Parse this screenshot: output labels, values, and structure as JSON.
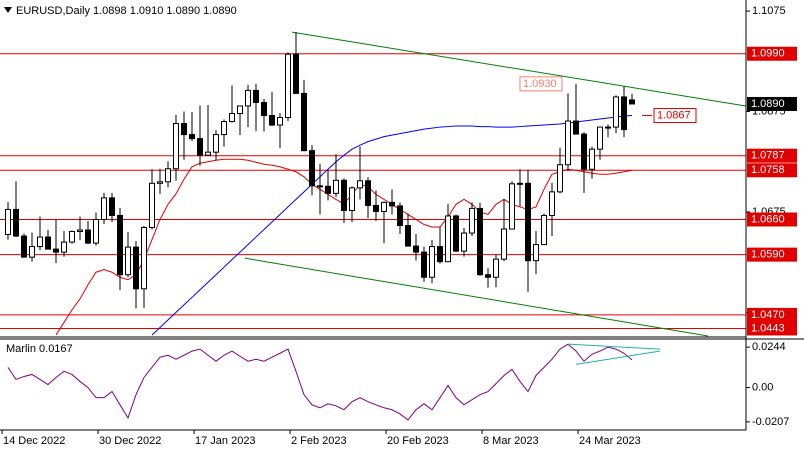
{
  "chart_data": [
    {
      "type": "candlestick",
      "title": "EURUSD,Daily 1.0898 1.0910 1.0890 1.0890",
      "categories": [
        "14 Dec 2022",
        null,
        null,
        null,
        null,
        null,
        null,
        null,
        null,
        null,
        null,
        null,
        "30 Dec 2022",
        null,
        null,
        null,
        null,
        null,
        null,
        null,
        null,
        null,
        null,
        null,
        "17 Jan 2023",
        null,
        null,
        null,
        null,
        null,
        null,
        null,
        null,
        null,
        null,
        null,
        "2 Feb 2023",
        null,
        null,
        null,
        null,
        null,
        null,
        null,
        null,
        null,
        null,
        null,
        "20 Feb 2023",
        null,
        null,
        null,
        null,
        null,
        null,
        null,
        null,
        null,
        null,
        null,
        "8 Mar 2023",
        null,
        null,
        null,
        null,
        null,
        null,
        null,
        null,
        null,
        null,
        null,
        "24 Mar 2023",
        null,
        null,
        null,
        null,
        null,
        null
      ],
      "ohlc": [
        [
          1.063,
          1.0695,
          1.062,
          1.068
        ],
        [
          1.068,
          1.0736,
          1.0625,
          1.0627
        ],
        [
          1.0627,
          1.0632,
          1.0585,
          1.0585
        ],
        [
          1.0585,
          1.0634,
          1.0576,
          1.0606
        ],
        [
          1.0606,
          1.0666,
          1.0599,
          1.0625
        ],
        [
          1.0625,
          1.0639,
          1.0601,
          1.0601
        ],
        [
          1.0601,
          1.0659,
          1.0573,
          1.0595
        ],
        [
          1.0595,
          1.0637,
          1.0586,
          1.0615
        ],
        [
          1.0615,
          1.0638,
          1.0612,
          1.0636
        ],
        [
          1.0636,
          1.0666,
          1.0619,
          1.0639
        ],
        [
          1.0639,
          1.0657,
          1.0611,
          1.0613
        ],
        [
          1.0613,
          1.0674,
          1.0608,
          1.066
        ],
        [
          1.066,
          1.0713,
          1.0651,
          1.0703
        ],
        [
          1.0703,
          1.0713,
          1.0655,
          1.0668
        ],
        [
          1.0668,
          1.0683,
          1.0519,
          1.055
        ],
        [
          1.055,
          1.0635,
          1.0545,
          1.0605
        ],
        [
          1.0605,
          1.0617,
          1.0483,
          1.0522
        ],
        [
          1.0522,
          1.0647,
          1.0484,
          1.0644
        ],
        [
          1.0644,
          1.076,
          1.064,
          1.0732
        ],
        [
          1.0732,
          1.0761,
          1.0711,
          1.0735
        ],
        [
          1.0735,
          1.0776,
          1.0724,
          1.0761
        ],
        [
          1.0761,
          1.0868,
          1.0737,
          1.0851
        ],
        [
          1.0851,
          1.0875,
          1.0779,
          1.0829
        ],
        [
          1.0829,
          1.0874,
          1.0816,
          1.0821
        ],
        [
          1.0821,
          1.0887,
          1.0767,
          1.0788
        ],
        [
          1.0788,
          1.0888,
          1.0788,
          1.0794
        ],
        [
          1.0794,
          1.0838,
          1.0778,
          1.0829
        ],
        [
          1.0829,
          1.0859,
          1.0805,
          1.0855
        ],
        [
          1.0855,
          1.0927,
          1.0853,
          1.0871
        ],
        [
          1.0871,
          1.0887,
          1.0828,
          1.0886
        ],
        [
          1.0886,
          1.0928,
          1.0844,
          1.0917
        ],
        [
          1.0917,
          1.093,
          1.0836,
          1.0893
        ],
        [
          1.0893,
          1.09,
          1.0835,
          1.0867
        ],
        [
          1.0867,
          1.0914,
          1.0846,
          1.0848
        ],
        [
          1.0848,
          1.0872,
          1.0802,
          1.0863
        ],
        [
          1.0863,
          1.0993,
          1.0856,
          1.0989
        ],
        [
          1.0989,
          1.1033,
          1.0912,
          1.0911
        ],
        [
          1.0911,
          1.0938,
          1.0796,
          1.0797
        ],
        [
          1.0797,
          1.0808,
          1.0708,
          1.0727
        ],
        [
          1.0727,
          1.0771,
          1.067,
          1.0726
        ],
        [
          1.0726,
          1.0759,
          1.0698,
          1.0712
        ],
        [
          1.0712,
          1.079,
          1.0705,
          1.0738
        ],
        [
          1.0738,
          1.0742,
          1.0653,
          1.0678
        ],
        [
          1.0678,
          1.0726,
          1.0655,
          1.0723
        ],
        [
          1.0723,
          1.0805,
          1.07,
          1.0737
        ],
        [
          1.0737,
          1.0744,
          1.0663,
          1.0688
        ],
        [
          1.0688,
          1.0718,
          1.0657,
          1.0676
        ],
        [
          1.0676,
          1.0696,
          1.0613,
          1.0694
        ],
        [
          1.0694,
          1.072,
          1.067,
          1.0687
        ],
        [
          1.0687,
          1.0694,
          1.0631,
          1.0648
        ],
        [
          1.0648,
          1.0672,
          1.0612,
          1.0607
        ],
        [
          1.0607,
          1.0631,
          1.0578,
          1.0595
        ],
        [
          1.0595,
          1.0606,
          1.0536,
          1.0545
        ],
        [
          1.0545,
          1.0619,
          1.0533,
          1.0606
        ],
        [
          1.0606,
          1.0645,
          1.0572,
          1.0576
        ],
        [
          1.0576,
          1.0691,
          1.0575,
          1.0667
        ],
        [
          1.0667,
          1.067,
          1.0595,
          1.0597
        ],
        [
          1.0597,
          1.0643,
          1.0586,
          1.0633
        ],
        [
          1.0633,
          1.0694,
          1.0627,
          1.0682
        ],
        [
          1.0682,
          1.0693,
          1.0548,
          1.055
        ],
        [
          1.055,
          1.0563,
          1.0524,
          1.0545
        ],
        [
          1.0545,
          1.059,
          1.0525,
          1.0581
        ],
        [
          1.0581,
          1.0701,
          1.0577,
          1.0641
        ],
        [
          1.0641,
          1.0736,
          1.0643,
          1.0731
        ],
        [
          1.0731,
          1.076,
          1.0686,
          1.0732
        ],
        [
          1.0732,
          1.0759,
          1.0516,
          1.0578
        ],
        [
          1.0578,
          1.0637,
          1.0551,
          1.061
        ],
        [
          1.061,
          1.0672,
          1.0612,
          1.0668
        ],
        [
          1.0668,
          1.0733,
          1.0627,
          1.0715
        ],
        [
          1.0715,
          1.0803,
          1.0712,
          1.0769
        ],
        [
          1.0769,
          1.0911,
          1.0757,
          1.0856
        ],
        [
          1.0856,
          1.093,
          1.0831,
          1.083
        ],
        [
          1.083,
          1.0834,
          1.0713,
          1.076
        ],
        [
          1.076,
          1.0805,
          1.0741,
          1.08
        ],
        [
          1.08,
          1.0844,
          1.0779,
          1.0844
        ],
        [
          1.0844,
          1.0849,
          1.0824,
          1.0844
        ],
        [
          1.0844,
          1.0907,
          1.0832,
          1.0904
        ],
        [
          1.0904,
          1.0925,
          1.0824,
          1.0839
        ],
        [
          1.0898,
          1.091,
          1.089,
          1.089
        ]
      ],
      "series": [
        {
          "color": "#0000ff",
          "values": [
            null,
            null,
            null,
            null,
            null,
            null,
            null,
            null,
            null,
            null,
            null,
            null,
            null,
            null,
            null,
            null,
            null,
            null,
            1.043,
            1.0445,
            1.046,
            1.0475,
            1.049,
            1.0505,
            1.052,
            1.0535,
            1.055,
            1.0565,
            1.058,
            1.0595,
            1.061,
            1.0625,
            1.064,
            1.0655,
            1.067,
            1.0685,
            1.07,
            1.0715,
            1.073,
            1.0745,
            1.076,
            1.0775,
            1.0788,
            1.08,
            1.0808,
            1.0815,
            1.082,
            1.0825,
            1.0828,
            1.0831,
            1.0834,
            1.0837,
            1.084,
            1.0842,
            1.0844,
            1.0845,
            1.0846,
            1.0846,
            1.0846,
            1.0845,
            1.0845,
            1.0844,
            1.0844,
            1.0844,
            1.0845,
            1.0846,
            1.0847,
            1.0848,
            1.0849,
            1.085,
            1.0852,
            1.0854,
            1.0856,
            1.0858,
            1.086,
            1.0862,
            1.0864,
            1.0866,
            1.0867
          ]
        },
        {
          "color": "#e00000",
          "values": [
            null,
            null,
            null,
            null,
            null,
            null,
            1.043,
            1.0455,
            1.048,
            1.0502,
            1.053,
            1.0555,
            1.056,
            1.0555,
            1.0545,
            1.054,
            1.055,
            1.058,
            1.062,
            1.066,
            1.069,
            1.0711,
            1.074,
            1.0765,
            1.0772,
            1.0775,
            1.0778,
            1.078,
            1.078,
            1.078,
            1.0778,
            1.0774,
            1.077,
            1.0768,
            1.0765,
            1.076,
            1.0755,
            1.0745,
            1.073,
            1.072,
            1.071,
            1.07,
            1.0691,
            1.071,
            1.073,
            1.0725,
            1.071,
            1.07,
            1.069,
            1.068,
            1.067,
            1.066,
            1.065,
            1.0645,
            1.0645,
            1.0665,
            1.069,
            1.07,
            1.069,
            1.0675,
            1.067,
            1.069,
            1.07,
            1.069,
            1.0685,
            1.068,
            1.0685,
            1.072,
            1.075,
            1.0755,
            1.076,
            1.0758,
            1.0755,
            1.0752,
            1.075,
            1.075,
            1.0752,
            1.0755,
            1.0758
          ]
        }
      ],
      "trendlines": [
        {
          "color": "#008000",
          "points": [
            [
              35.5,
              1.1033
            ],
            [
              92.2,
              1.0886
            ]
          ]
        },
        {
          "color": "#008000",
          "points": [
            [
              29.6,
              1.0583
            ],
            [
              87.5,
              1.0428
            ]
          ]
        }
      ],
      "levels": [
        {
          "value": 1.099,
          "label": "1.0990"
        },
        1.0787,
        1.0758,
        {
          "value": 1.066,
          "label": "1.0660"
        },
        {
          "value": 1.059,
          "label": "1.0590"
        },
        {
          "value": 1.047,
          "label": "1.0470"
        },
        1.0443
      ],
      "level_color": "#e00000",
      "last_price": {
        "value": 1.089,
        "label": "1.0890"
      },
      "annotations": [
        {
          "value": 1.093,
          "label": "1.0930",
          "index": 70,
          "color": "#f08070"
        },
        {
          "value": 1.0867,
          "label": "1.0867",
          "index": 78,
          "color": "#e00000"
        }
      ],
      "ylim": [
        1.0426,
        1.1097
      ],
      "yticks": [
        1.1075,
        1.0875,
        1.0675,
        1.0475
      ]
    },
    {
      "type": "line",
      "name": "Marlin",
      "value": 0.0167,
      "color": "#800080",
      "values": [
        0.0122,
        0.0049,
        0.0067,
        0.0079,
        0.0049,
        0.0018,
        0.0061,
        0.0098,
        0.0079,
        0.0037,
        0,
        -0.0061,
        -0.0061,
        -0.0024,
        -0.0104,
        -0.0183,
        -0.0043,
        0.0061,
        0.0122,
        0.0183,
        0.0195,
        0.0171,
        0.0195,
        0.022,
        0.0232,
        0.0195,
        0.0159,
        0.0195,
        0.022,
        0.0189,
        0.0159,
        0.0171,
        0.0159,
        0.0183,
        0.0207,
        0.0232,
        0.0098,
        -0.0043,
        -0.0104,
        -0.0122,
        -0.0098,
        -0.011,
        -0.0134,
        -0.0085,
        -0.0061,
        -0.0085,
        -0.0104,
        -0.0122,
        -0.0134,
        -0.0159,
        -0.0195,
        -0.0134,
        -0.0098,
        -0.0134,
        -0.0061,
        0.0012,
        -0.0061,
        -0.0104,
        -0.0073,
        -0.0043,
        -0.0024,
        0.0024,
        0.0073,
        0.011,
        0.0037,
        -0.0024,
        0.0073,
        0.0122,
        0.0171,
        0.0232,
        0.0262,
        0.022,
        0.0159,
        0.0201,
        0.022,
        0.0244,
        0.0232,
        0.0207,
        0.0167
      ],
      "trendlines": [
        {
          "color": "#20b2aa",
          "points": [
            [
              70,
              0.0262
            ],
            [
              81.5,
              0.0232
            ]
          ]
        },
        {
          "color": "#20b2aa",
          "points": [
            [
              71,
              0.014
            ],
            [
              81.5,
              0.022
            ]
          ]
        }
      ],
      "ylim": [
        -0.0256,
        0.0293
      ],
      "yticks": [
        0.0244,
        {
          "value": 0,
          "label": "0.00"
        },
        -0.0207
      ]
    }
  ]
}
